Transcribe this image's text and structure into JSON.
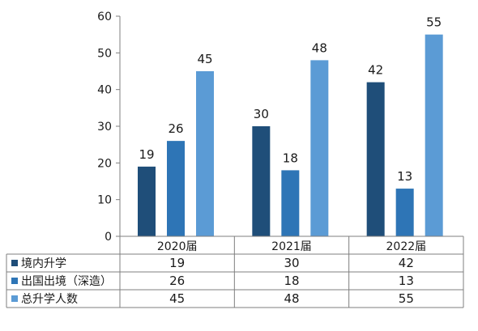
{
  "chart_data": {
    "type": "bar",
    "categories": [
      "2020届",
      "2021届",
      "2022届"
    ],
    "series": [
      {
        "name": "境内升学",
        "values": [
          19,
          30,
          42
        ],
        "color": "#1f4e79"
      },
      {
        "name": "出国出境（深造）",
        "values": [
          26,
          18,
          13
        ],
        "color": "#2e75b6"
      },
      {
        "name": "总升学人数",
        "values": [
          45,
          48,
          55
        ],
        "color": "#5b9bd5"
      }
    ],
    "ylim": [
      0,
      60
    ],
    "yticks": [
      0,
      10,
      20,
      30,
      40,
      50,
      60
    ],
    "grid": false,
    "legend": "data-table",
    "title": "",
    "xlabel": "",
    "ylabel": ""
  }
}
